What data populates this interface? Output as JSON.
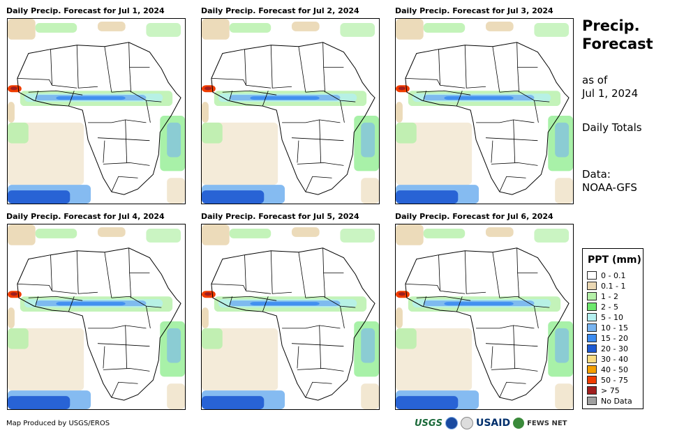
{
  "panels": [
    {
      "title": "Daily Precip. Forecast for Jul 1, 2024"
    },
    {
      "title": "Daily Precip. Forecast for Jul 2, 2024"
    },
    {
      "title": "Daily Precip. Forecast for Jul 3, 2024"
    },
    {
      "title": "Daily Precip. Forecast for Jul 4, 2024"
    },
    {
      "title": "Daily Precip. Forecast for Jul 5, 2024"
    },
    {
      "title": "Daily Precip. Forecast for Jul 6, 2024"
    }
  ],
  "side": {
    "title_line1": "Precip.",
    "title_line2": "Forecast",
    "asof_line1": "as of",
    "asof_line2": "Jul 1, 2024",
    "totals": "Daily Totals",
    "data_line1": "Data:",
    "data_line2": "NOAA-GFS"
  },
  "legend": {
    "title": "PPT (mm)",
    "items": [
      {
        "label": "0 - 0.1",
        "color": "#ffffff"
      },
      {
        "label": "0.1 - 1",
        "color": "#ead7b3"
      },
      {
        "label": "1 - 2",
        "color": "#b4f0a8"
      },
      {
        "label": "2 - 5",
        "color": "#6ee86e"
      },
      {
        "label": "5 - 10",
        "color": "#b4f0f0"
      },
      {
        "label": "10 - 15",
        "color": "#78b4f0"
      },
      {
        "label": "15 - 20",
        "color": "#3c8cf0"
      },
      {
        "label": "20 - 30",
        "color": "#1e5ad2"
      },
      {
        "label": "30 - 40",
        "color": "#fadc82"
      },
      {
        "label": "40 - 50",
        "color": "#f5a000"
      },
      {
        "label": "50 - 75",
        "color": "#f03c00"
      },
      {
        "label": "> 75",
        "color": "#a01e1e"
      },
      {
        "label": "No Data",
        "color": "#a0a0a0"
      }
    ]
  },
  "footer": {
    "credit": "Map Produced by USGS/EROS"
  },
  "logos": {
    "usgs": "USGS",
    "usaid": "USAID",
    "fews": "FEWS NET"
  }
}
